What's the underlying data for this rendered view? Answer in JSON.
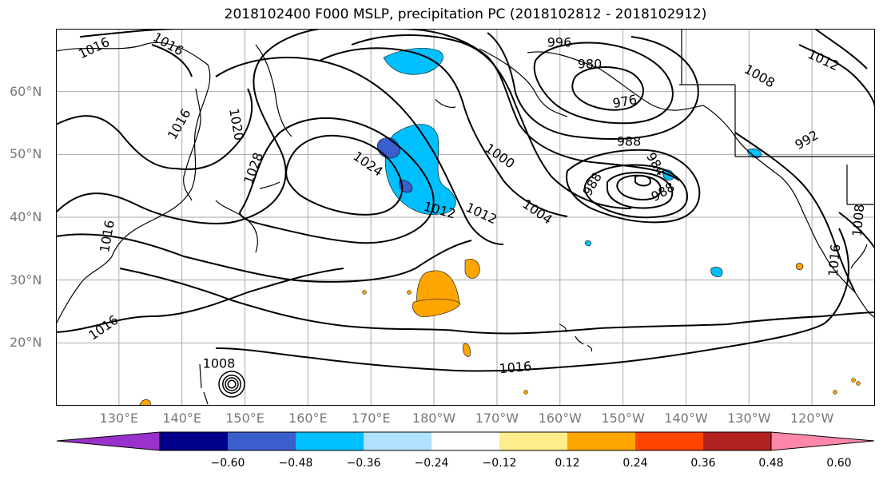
{
  "title": "2018102400 F000 MSLP, precipitation PC (2018102812 - 2018102912)",
  "map": {
    "lat_labels": [
      {
        "text": "60°N",
        "lat": 60
      },
      {
        "text": "50°N",
        "lat": 50
      },
      {
        "text": "40°N",
        "lat": 40
      },
      {
        "text": "30°N",
        "lat": 30
      },
      {
        "text": "20°N",
        "lat": 20
      }
    ],
    "lon_labels": [
      {
        "text": "130°E",
        "lon": 130
      },
      {
        "text": "140°E",
        "lon": 140
      },
      {
        "text": "150°E",
        "lon": 150
      },
      {
        "text": "160°E",
        "lon": 160
      },
      {
        "text": "170°E",
        "lon": 170
      },
      {
        "text": "180°W",
        "lon": 180
      },
      {
        "text": "170°W",
        "lon": 190
      },
      {
        "text": "160°W",
        "lon": 200
      },
      {
        "text": "150°W",
        "lon": 210
      },
      {
        "text": "140°W",
        "lon": 220
      },
      {
        "text": "130°W",
        "lon": 230
      },
      {
        "text": "120°W",
        "lon": 240
      }
    ],
    "extent": {
      "lon_min": 120,
      "lon_max": 250,
      "lat_min": 10,
      "lat_max": 70
    },
    "isobar_labels": [
      "1016",
      "1016",
      "1016",
      "1012",
      "1020",
      "1028",
      "1024",
      "1012",
      "1000",
      "1004",
      "996",
      "980",
      "976",
      "988",
      "988",
      "988",
      "984",
      "992",
      "1008",
      "1016",
      "1008",
      "1016",
      "1008",
      "1012",
      "1016",
      "1016"
    ],
    "low_center": {
      "lat": 45,
      "lon": 210
    }
  },
  "colorbar": {
    "colors": [
      "#9932cc",
      "#00008b",
      "#3a5fcd",
      "#00bfff",
      "#b0e2ff",
      "#ffffff",
      "#ffec8b",
      "#ffa500",
      "#ff4500",
      "#b22222",
      "#ff88aa"
    ],
    "tick_labels": [
      "−0.60",
      "−0.48",
      "−0.36",
      "−0.24",
      "−0.12",
      "0.12",
      "0.24",
      "0.36",
      "0.48",
      "0.60"
    ]
  }
}
